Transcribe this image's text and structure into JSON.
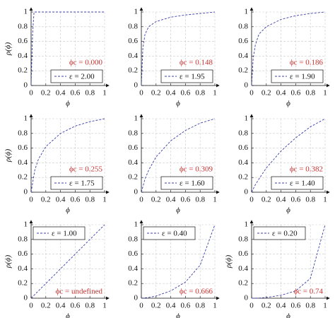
{
  "chart_data": [
    {
      "type": "line",
      "ylabel": "ρ(ϕ)",
      "xlabel": "ϕ",
      "annotation": "ϕc = 0.000",
      "legend": "lower right",
      "grid": true,
      "xlim": [
        0,
        1
      ],
      "ylim": [
        0,
        1
      ],
      "xticks": [
        0,
        0.2,
        0.4,
        0.6,
        0.8,
        1
      ],
      "yticks": [
        0,
        0.2,
        0.4,
        0.6,
        0.8,
        1
      ],
      "x": [
        0,
        0.02,
        0.04,
        0.2,
        0.4,
        0.6,
        0.8,
        1
      ],
      "series": [
        {
          "name": "ε = 2.00",
          "color": "#3b3fa8",
          "values": [
            0,
            0.7,
            1,
            1,
            1,
            1,
            1,
            1
          ]
        }
      ]
    },
    {
      "type": "line",
      "xlabel": "ϕ",
      "annotation": "ϕc = 0.148",
      "legend": "lower right",
      "grid": true,
      "xlim": [
        0,
        1
      ],
      "ylim": [
        0,
        1
      ],
      "xticks": [
        0,
        0.2,
        0.4,
        0.6,
        0.8,
        1
      ],
      "yticks": [
        0,
        0.2,
        0.4,
        0.6,
        0.8,
        1
      ],
      "x": [
        0,
        0.02,
        0.05,
        0.1,
        0.2,
        0.4,
        0.6,
        0.8,
        1
      ],
      "series": [
        {
          "name": "ε = 1.95",
          "color": "#3b3fa8",
          "values": [
            0,
            0.5,
            0.7,
            0.8,
            0.87,
            0.93,
            0.96,
            0.98,
            1
          ]
        }
      ]
    },
    {
      "type": "line",
      "xlabel": "ϕ",
      "annotation": "ϕc = 0.186",
      "legend": "lower right",
      "grid": true,
      "xlim": [
        0,
        1
      ],
      "ylim": [
        0,
        1
      ],
      "xticks": [
        0,
        0.2,
        0.4,
        0.6,
        0.8,
        1
      ],
      "yticks": [
        0,
        0.2,
        0.4,
        0.6,
        0.8,
        1
      ],
      "x": [
        0,
        0.02,
        0.05,
        0.1,
        0.2,
        0.4,
        0.6,
        0.8,
        1
      ],
      "series": [
        {
          "name": "ε = 1.90",
          "color": "#3b3fa8",
          "values": [
            0,
            0.35,
            0.55,
            0.7,
            0.8,
            0.9,
            0.95,
            0.98,
            1
          ]
        }
      ]
    },
    {
      "type": "line",
      "ylabel": "ρ(ϕ)",
      "xlabel": "ϕ",
      "annotation": "ϕc = 0.255",
      "legend": "lower right",
      "grid": true,
      "xlim": [
        0,
        1
      ],
      "ylim": [
        0,
        1
      ],
      "xticks": [
        0,
        0.2,
        0.4,
        0.6,
        0.8,
        1
      ],
      "yticks": [
        0,
        0.2,
        0.4,
        0.6,
        0.8,
        1
      ],
      "x": [
        0,
        0.05,
        0.1,
        0.2,
        0.4,
        0.6,
        0.8,
        1
      ],
      "series": [
        {
          "name": "ε = 1.75",
          "color": "#3b3fa8",
          "values": [
            0,
            0.3,
            0.45,
            0.62,
            0.8,
            0.9,
            0.96,
            1
          ]
        }
      ]
    },
    {
      "type": "line",
      "xlabel": "ϕ",
      "annotation": "ϕc = 0.309",
      "legend": "lower right",
      "grid": true,
      "xlim": [
        0,
        1
      ],
      "ylim": [
        0,
        1
      ],
      "xticks": [
        0,
        0.2,
        0.4,
        0.6,
        0.8,
        1
      ],
      "yticks": [
        0,
        0.2,
        0.4,
        0.6,
        0.8,
        1
      ],
      "x": [
        0,
        0.05,
        0.1,
        0.2,
        0.4,
        0.6,
        0.8,
        1
      ],
      "series": [
        {
          "name": "ε = 1.60",
          "color": "#3b3fa8",
          "values": [
            0,
            0.18,
            0.3,
            0.48,
            0.7,
            0.84,
            0.94,
            1
          ]
        }
      ]
    },
    {
      "type": "line",
      "xlabel": "ϕ",
      "annotation": "ϕc = 0.382",
      "legend": "lower right",
      "grid": true,
      "xlim": [
        0,
        1
      ],
      "ylim": [
        0,
        1
      ],
      "xticks": [
        0,
        0.2,
        0.4,
        0.6,
        0.8,
        1
      ],
      "yticks": [
        0,
        0.2,
        0.4,
        0.6,
        0.8,
        1
      ],
      "x": [
        0,
        0.05,
        0.1,
        0.2,
        0.4,
        0.6,
        0.8,
        1
      ],
      "series": [
        {
          "name": "ε = 1.40",
          "color": "#3b3fa8",
          "values": [
            0,
            0.1,
            0.18,
            0.33,
            0.56,
            0.74,
            0.89,
            1
          ]
        }
      ]
    },
    {
      "type": "line",
      "ylabel": "ρ(ϕ)",
      "xlabel": "ϕ",
      "annotation": "ϕc = undefined",
      "legend": "upper left",
      "grid": true,
      "xlim": [
        0,
        1
      ],
      "ylim": [
        0,
        1
      ],
      "xticks": [
        0,
        0.2,
        0.4,
        0.6,
        0.8,
        1
      ],
      "yticks": [
        0,
        0.2,
        0.4,
        0.6,
        0.8,
        1
      ],
      "x": [
        0,
        0.05,
        0.1,
        0.2,
        0.4,
        0.6,
        0.8,
        1
      ],
      "series": [
        {
          "name": "ε = 1.00",
          "color": "#3b3fa8",
          "values": [
            0,
            0.05,
            0.1,
            0.2,
            0.4,
            0.6,
            0.8,
            1
          ]
        }
      ]
    },
    {
      "type": "line",
      "xlabel": "ϕ",
      "annotation": "ϕc = 0.666",
      "legend": "upper left",
      "grid": true,
      "xlim": [
        0,
        1
      ],
      "ylim": [
        0,
        1
      ],
      "xticks": [
        0,
        0.2,
        0.4,
        0.6,
        0.8,
        1
      ],
      "yticks": [
        0,
        0.2,
        0.4,
        0.6,
        0.8,
        1
      ],
      "x": [
        0,
        0.05,
        0.1,
        0.2,
        0.4,
        0.6,
        0.8,
        1
      ],
      "series": [
        {
          "name": "ε = 0.40",
          "color": "#3b3fa8",
          "values": [
            0,
            0.005,
            0.01,
            0.03,
            0.1,
            0.22,
            0.45,
            1
          ]
        }
      ]
    },
    {
      "type": "line",
      "ylabel": "ρ(ϕ)",
      "xlabel": "ϕ",
      "annotation": "ϕc = 0.74",
      "legend": "upper left",
      "grid": true,
      "xlim": [
        0,
        1
      ],
      "ylim": [
        0,
        1
      ],
      "xticks": [
        0,
        0.2,
        0.4,
        0.6,
        0.8,
        1
      ],
      "yticks": [
        0,
        0.2,
        0.4,
        0.6,
        0.8,
        1
      ],
      "x": [
        0,
        0.05,
        0.1,
        0.2,
        0.4,
        0.6,
        0.8,
        1
      ],
      "series": [
        {
          "name": "ε = 0.20",
          "color": "#3b3fa8",
          "values": [
            0,
            0,
            0.002,
            0.01,
            0.04,
            0.1,
            0.27,
            1
          ]
        }
      ]
    }
  ]
}
